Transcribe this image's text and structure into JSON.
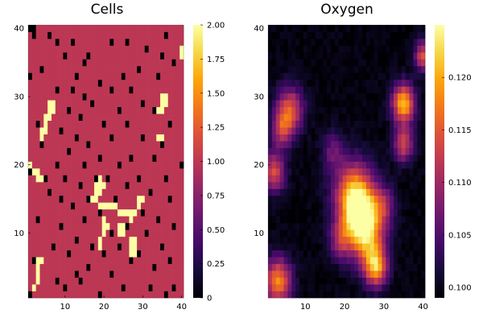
{
  "chart_data": [
    {
      "type": "heatmap",
      "title": "Cells",
      "grid_size": [
        40,
        40
      ],
      "xlim": [
        0.5,
        40.5
      ],
      "ylim": [
        0.5,
        40.5
      ],
      "xticks": [
        10,
        20,
        30,
        40
      ],
      "yticks": [
        10,
        20,
        30,
        40
      ],
      "colorbar": {
        "min": 0,
        "max": 2,
        "ticks": [
          "0",
          "0.25",
          "0.50",
          "0.75",
          "1.00",
          "1.25",
          "1.50",
          "1.75",
          "2.00"
        ]
      },
      "background_value": 1,
      "cells_value_0": [
        [
          1,
          40
        ],
        [
          2,
          40
        ],
        [
          2,
          39
        ],
        [
          6,
          39
        ],
        [
          8,
          38
        ],
        [
          12,
          38
        ],
        [
          22,
          38
        ],
        [
          26,
          38
        ],
        [
          36,
          39
        ],
        [
          10,
          36
        ],
        [
          16,
          36
        ],
        [
          31,
          37
        ],
        [
          35,
          36
        ],
        [
          15,
          35
        ],
        [
          29,
          34
        ],
        [
          38,
          35
        ],
        [
          4,
          34
        ],
        [
          13,
          33
        ],
        [
          25,
          33
        ],
        [
          34,
          33
        ],
        [
          1,
          33
        ],
        [
          19,
          32
        ],
        [
          8,
          31
        ],
        [
          12,
          31
        ],
        [
          22,
          31
        ],
        [
          27,
          31
        ],
        [
          15,
          30
        ],
        [
          17,
          29
        ],
        [
          30,
          29
        ],
        [
          11,
          28
        ],
        [
          24,
          28
        ],
        [
          33,
          28
        ],
        [
          14,
          27
        ],
        [
          3,
          26
        ],
        [
          20,
          26
        ],
        [
          26,
          26
        ],
        [
          37,
          26
        ],
        [
          9,
          25
        ],
        [
          13,
          24
        ],
        [
          22,
          24
        ],
        [
          30,
          24
        ],
        [
          4,
          23
        ],
        [
          16,
          23
        ],
        [
          35,
          23
        ],
        [
          11,
          22
        ],
        [
          19,
          21
        ],
        [
          27,
          21
        ],
        [
          33,
          21
        ],
        [
          8,
          20
        ],
        [
          15,
          20
        ],
        [
          24,
          20
        ],
        [
          40,
          20
        ],
        [
          1,
          19
        ],
        [
          5,
          18
        ],
        [
          10,
          18
        ],
        [
          18,
          18
        ],
        [
          21,
          18
        ],
        [
          29,
          18
        ],
        [
          36,
          18
        ],
        [
          14,
          17
        ],
        [
          26,
          17
        ],
        [
          32,
          16
        ],
        [
          6,
          16
        ],
        [
          9,
          15
        ],
        [
          16,
          15
        ],
        [
          23,
          15
        ],
        [
          37,
          15
        ],
        [
          12,
          14
        ],
        [
          19,
          13
        ],
        [
          30,
          13
        ],
        [
          34,
          12
        ],
        [
          3,
          12
        ],
        [
          15,
          12
        ],
        [
          26,
          11
        ],
        [
          9,
          11
        ],
        [
          38,
          11
        ],
        [
          22,
          10
        ],
        [
          31,
          10
        ],
        [
          13,
          9
        ],
        [
          17,
          8
        ],
        [
          24,
          8
        ],
        [
          35,
          8
        ],
        [
          7,
          8
        ],
        [
          11,
          7
        ],
        [
          20,
          7
        ],
        [
          29,
          7
        ],
        [
          2,
          6
        ],
        [
          27,
          6
        ],
        [
          37,
          6
        ],
        [
          16,
          5
        ],
        [
          33,
          5
        ],
        [
          13,
          4
        ],
        [
          22,
          4
        ],
        [
          8,
          3
        ],
        [
          14,
          3
        ],
        [
          10,
          2
        ],
        [
          25,
          2
        ],
        [
          32,
          2
        ],
        [
          38,
          2
        ],
        [
          1,
          1
        ],
        [
          19,
          1
        ],
        [
          36,
          1
        ]
      ],
      "cells_value_2": [
        [
          6,
          29
        ],
        [
          7,
          29
        ],
        [
          6,
          28
        ],
        [
          7,
          28
        ],
        [
          5,
          27
        ],
        [
          6,
          27
        ],
        [
          5,
          26
        ],
        [
          4,
          25
        ],
        [
          5,
          25
        ],
        [
          4,
          24
        ],
        [
          35,
          30
        ],
        [
          36,
          30
        ],
        [
          35,
          29
        ],
        [
          36,
          29
        ],
        [
          34,
          28
        ],
        [
          35,
          28
        ],
        [
          40,
          37
        ],
        [
          40,
          36
        ],
        [
          34,
          24
        ],
        [
          35,
          24
        ],
        [
          1,
          20
        ],
        [
          2,
          19
        ],
        [
          3,
          19
        ],
        [
          3,
          18
        ],
        [
          4,
          18
        ],
        [
          19,
          18
        ],
        [
          18,
          17
        ],
        [
          19,
          17
        ],
        [
          18,
          16
        ],
        [
          19,
          16
        ],
        [
          17,
          15
        ],
        [
          18,
          15
        ],
        [
          20,
          17
        ],
        [
          19,
          14
        ],
        [
          20,
          14
        ],
        [
          21,
          14
        ],
        [
          22,
          14
        ],
        [
          23,
          14
        ],
        [
          24,
          13
        ],
        [
          25,
          13
        ],
        [
          26,
          13
        ],
        [
          27,
          13
        ],
        [
          29,
          15
        ],
        [
          30,
          15
        ],
        [
          29,
          14
        ],
        [
          28,
          13
        ],
        [
          27,
          12
        ],
        [
          20,
          12
        ],
        [
          20,
          11
        ],
        [
          21,
          11
        ],
        [
          20,
          10
        ],
        [
          19,
          9
        ],
        [
          19,
          8
        ],
        [
          24,
          11
        ],
        [
          25,
          11
        ],
        [
          24,
          10
        ],
        [
          25,
          10
        ],
        [
          27,
          9
        ],
        [
          28,
          9
        ],
        [
          27,
          8
        ],
        [
          28,
          8
        ],
        [
          27,
          7
        ],
        [
          28,
          7
        ],
        [
          3,
          6
        ],
        [
          4,
          6
        ],
        [
          3,
          5
        ],
        [
          3,
          4
        ],
        [
          3,
          3
        ],
        [
          2,
          2
        ]
      ]
    },
    {
      "type": "heatmap",
      "title": "Oxygen",
      "grid_size": [
        40,
        40
      ],
      "xlim": [
        0.5,
        40.5
      ],
      "ylim": [
        0.5,
        40.5
      ],
      "xticks": [
        10,
        20,
        30,
        40
      ],
      "yticks": [
        10,
        20,
        30,
        40
      ],
      "colorbar": {
        "min": 0.099,
        "max": 0.125,
        "ticks": [
          "0.100",
          "0.105",
          "0.110",
          "0.115",
          "0.120"
        ]
      },
      "base_value": 0.0995,
      "sources": [
        {
          "x": 24,
          "y": 13,
          "peak": 0.1215,
          "radius": 3.2
        },
        {
          "x": 22,
          "y": 16,
          "peak": 0.1135,
          "radius": 3.5
        },
        {
          "x": 26,
          "y": 9,
          "peak": 0.1135,
          "radius": 3.0
        },
        {
          "x": 28,
          "y": 5,
          "peak": 0.118,
          "radius": 2.0
        },
        {
          "x": 35,
          "y": 29,
          "peak": 0.1215,
          "radius": 2.0
        },
        {
          "x": 35,
          "y": 23,
          "peak": 0.113,
          "radius": 1.8
        },
        {
          "x": 6,
          "y": 28,
          "peak": 0.115,
          "radius": 2.4
        },
        {
          "x": 4,
          "y": 25,
          "peak": 0.11,
          "radius": 1.8
        },
        {
          "x": 2,
          "y": 19,
          "peak": 0.114,
          "radius": 2.0
        },
        {
          "x": 3,
          "y": 3,
          "peak": 0.118,
          "radius": 2.4
        },
        {
          "x": 40,
          "y": 36,
          "peak": 0.114,
          "radius": 1.5
        },
        {
          "x": 19,
          "y": 9,
          "peak": 0.109,
          "radius": 2.0
        },
        {
          "x": 17,
          "y": 22,
          "peak": 0.106,
          "radius": 2.0
        },
        {
          "x": 30,
          "y": 14,
          "peak": 0.108,
          "radius": 2.0
        }
      ]
    }
  ]
}
